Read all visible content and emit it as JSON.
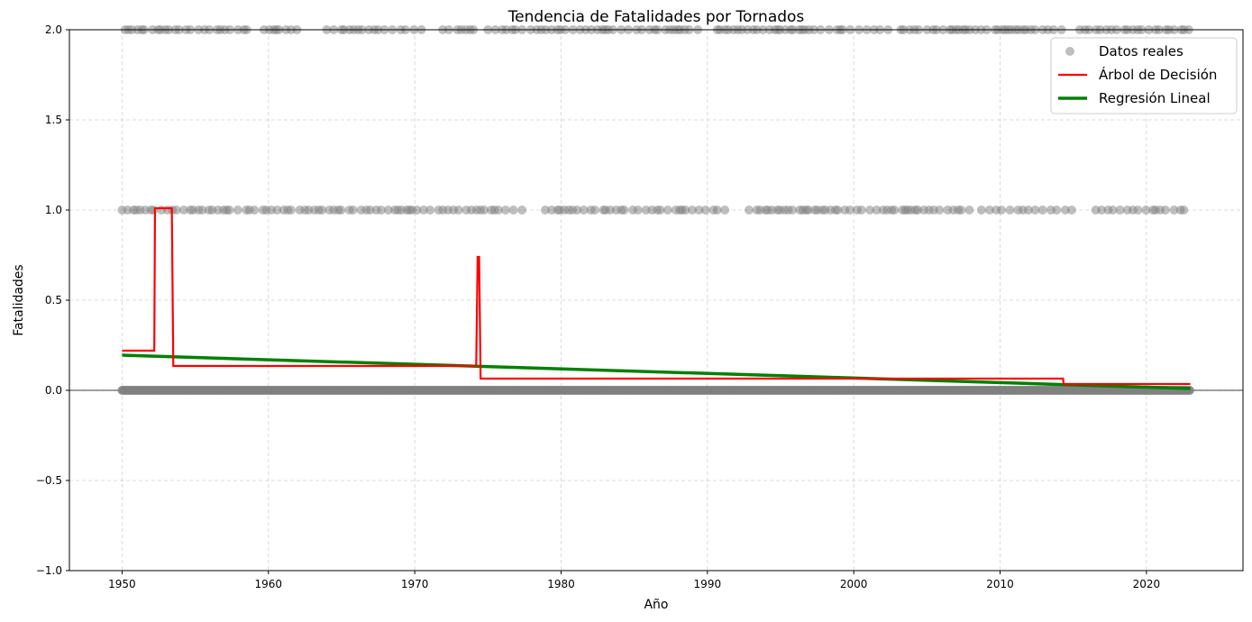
{
  "chart_data": {
    "type": "scatter",
    "title": "Tendencia de Fatalidades por Tornados",
    "xlabel": "Año",
    "ylabel": "Fatalidades",
    "xlim": [
      1946.4,
      2026.6
    ],
    "ylim": [
      -1.0,
      2.0
    ],
    "xticks": [
      1950,
      1960,
      1970,
      1980,
      1990,
      2000,
      2010,
      2020
    ],
    "xtick_labels": [
      "1950",
      "1960",
      "1970",
      "1980",
      "1990",
      "2000",
      "2010",
      "2020"
    ],
    "yticks": [
      -1.0,
      -0.5,
      0.0,
      0.5,
      1.0,
      1.5,
      2.0
    ],
    "ytick_labels": [
      "−1.0",
      "−0.5",
      "0.0",
      "0.5",
      "1.0",
      "1.5",
      "2.0"
    ],
    "grid": true,
    "legend_position": "top-right",
    "colors": {
      "points": "#808080",
      "tree": "#ff0000",
      "linear": "#008000",
      "grid": "#b0b0b0",
      "zero_line": "#000000"
    },
    "series": [
      {
        "name": "Datos reales",
        "kind": "scatter",
        "rows": [
          {
            "y": 0,
            "from": 1950.0,
            "to": 2023.0
          },
          {
            "y": 1,
            "from": 1950.0,
            "to": 2023.0,
            "gaps": [
              [
                1977.5,
                1978.5
              ],
              [
                1991.3,
                1992.4
              ],
              [
                2008.2,
                2008.6
              ],
              [
                2015.4,
                2016.2
              ]
            ]
          },
          {
            "y": 2,
            "from": 1950.2,
            "to": 2023.0,
            "gaps": [
              [
                1958.7,
                1959.6
              ],
              [
                1962.4,
                1963.8
              ],
              [
                1970.7,
                1971.6
              ],
              [
                1974.4,
                1974.9
              ],
              [
                1989.4,
                1990.6
              ],
              [
                2002.4,
                2003.0
              ],
              [
                2014.6,
                2015.2
              ]
            ]
          }
        ]
      },
      {
        "name": "Árbol de Decisión",
        "kind": "step-line",
        "points": [
          [
            1950.0,
            0.22
          ],
          [
            1952.2,
            0.22
          ],
          [
            1952.25,
            1.01
          ],
          [
            1953.4,
            1.01
          ],
          [
            1953.5,
            0.135
          ],
          [
            1974.2,
            0.135
          ],
          [
            1974.3,
            0.74
          ],
          [
            1974.4,
            0.74
          ],
          [
            1974.5,
            0.065
          ],
          [
            2014.3,
            0.065
          ],
          [
            2014.35,
            0.035
          ],
          [
            2023.0,
            0.035
          ]
        ]
      },
      {
        "name": "Regresión Lineal",
        "kind": "line",
        "points": [
          [
            1950.0,
            0.195
          ],
          [
            2023.0,
            0.01
          ]
        ]
      }
    ]
  }
}
